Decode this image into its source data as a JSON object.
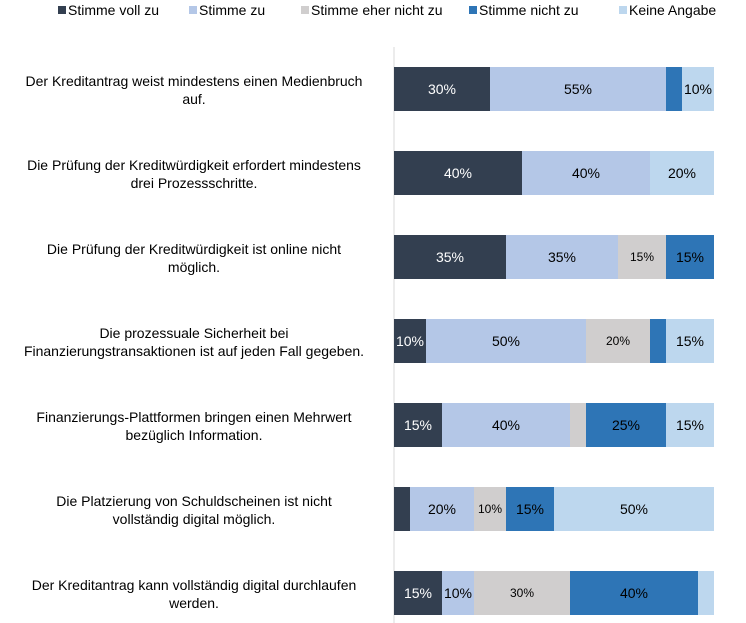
{
  "chart_data": {
    "type": "bar",
    "orientation": "horizontal",
    "stacked": true,
    "value_unit": "percent",
    "xlim": [
      0,
      100
    ],
    "legend_position": "top",
    "grid": false,
    "categories": [
      [
        "Der Kreditantrag weist mindestens einen Medienbruch",
        "auf."
      ],
      [
        "Die Prüfung der Kreditwürdigkeit erfordert mindestens",
        "drei Prozessschritte."
      ],
      [
        "Die Prüfung der Kreditwürdigkeit ist online nicht",
        "möglich."
      ],
      [
        "Die prozessuale Sicherheit bei",
        "Finanzierungstransaktionen ist auf jeden Fall gegeben."
      ],
      [
        "Finanzierungs-Plattformen bringen einen Mehrwert",
        "bezüglich Information."
      ],
      [
        "Die Platzierung von Schuldscheinen ist nicht",
        "vollständig digital möglich."
      ],
      [
        "Der Kreditantrag kann vollständig digital durchlaufen",
        "werden."
      ]
    ],
    "series": [
      {
        "name": "Stimme voll zu",
        "color": "#333f50",
        "label_color": "#ffffff",
        "values": [
          30,
          40,
          35,
          10,
          15,
          5,
          15
        ]
      },
      {
        "name": "Stimme zu",
        "color": "#b4c7e7",
        "label_color": "#000000",
        "values": [
          55,
          40,
          35,
          50,
          40,
          20,
          10
        ]
      },
      {
        "name": "Stimme eher nicht zu",
        "color": "#d0cece",
        "label_color": "#000000",
        "values": [
          0,
          0,
          15,
          20,
          5,
          10,
          30
        ]
      },
      {
        "name": "Stimme nicht zu",
        "color": "#2e75b6",
        "label_color": "#000000",
        "values": [
          5,
          0,
          15,
          5,
          25,
          15,
          40
        ]
      },
      {
        "name": "Keine Angabe",
        "color": "#bdd7ee",
        "label_color": "#000000",
        "values": [
          10,
          20,
          0,
          15,
          15,
          50,
          5
        ]
      }
    ],
    "data_labels": [
      [
        "30%",
        "55%",
        null,
        null,
        "10%"
      ],
      [
        "40%",
        "40%",
        null,
        null,
        "20%"
      ],
      [
        "35%",
        "35%",
        "15%",
        "15%",
        null
      ],
      [
        "10%",
        "50%",
        "20%",
        null,
        "15%"
      ],
      [
        "15%",
        "40%",
        null,
        "25%",
        "15%"
      ],
      [
        null,
        "20%",
        "10%",
        "15%",
        "50%"
      ],
      [
        "15%",
        "10%",
        "30%",
        "40%",
        null
      ]
    ]
  }
}
